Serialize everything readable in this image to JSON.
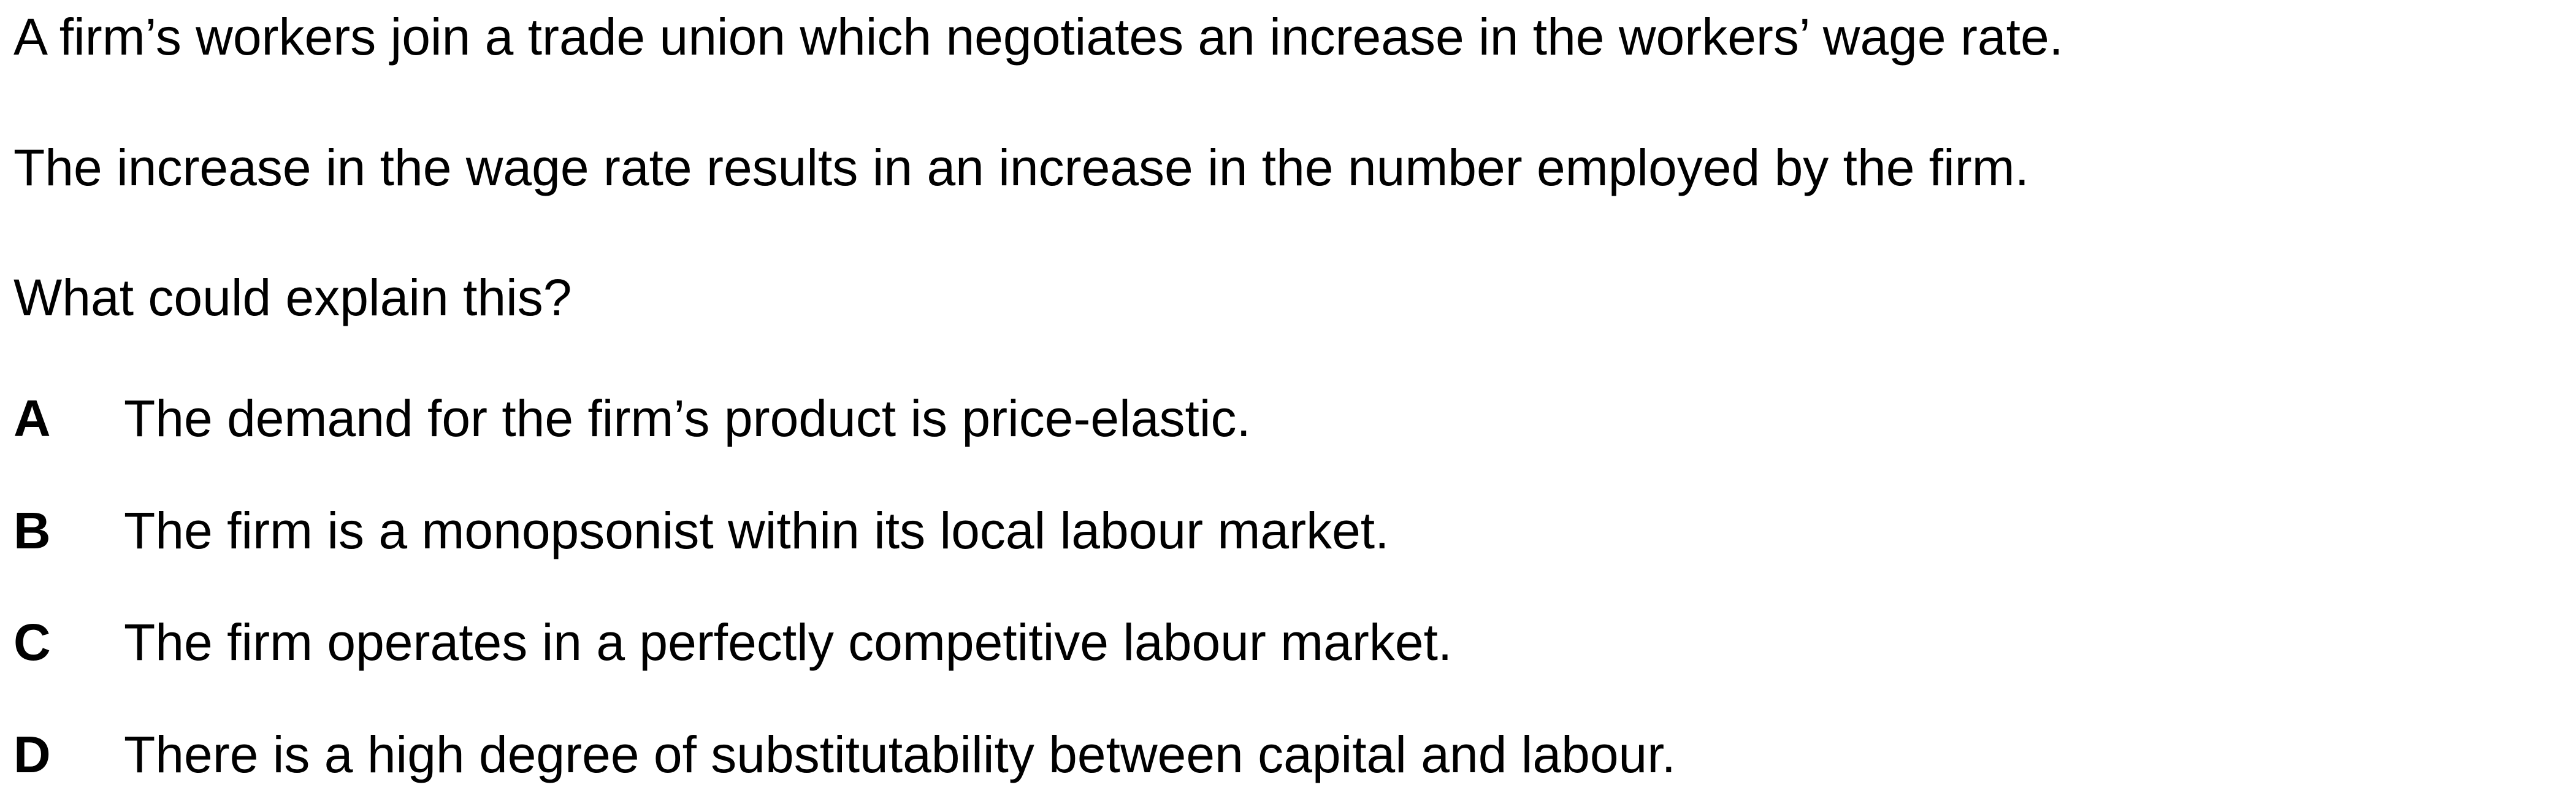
{
  "question": {
    "stem": [
      "A firm’s workers join a trade union which negotiates an increase in the workers’ wage rate.",
      "The increase in the wage rate results in an increase in the number employed by the firm.",
      "What could explain this?"
    ],
    "options": [
      {
        "letter": "A",
        "text": "The demand for the firm’s product is price-elastic."
      },
      {
        "letter": "B",
        "text": "The firm is a monopsonist within its local labour market."
      },
      {
        "letter": "C",
        "text": "The firm operates in a perfectly competitive labour market."
      },
      {
        "letter": "D",
        "text": "There is a high degree of substitutability between capital and labour."
      }
    ]
  }
}
